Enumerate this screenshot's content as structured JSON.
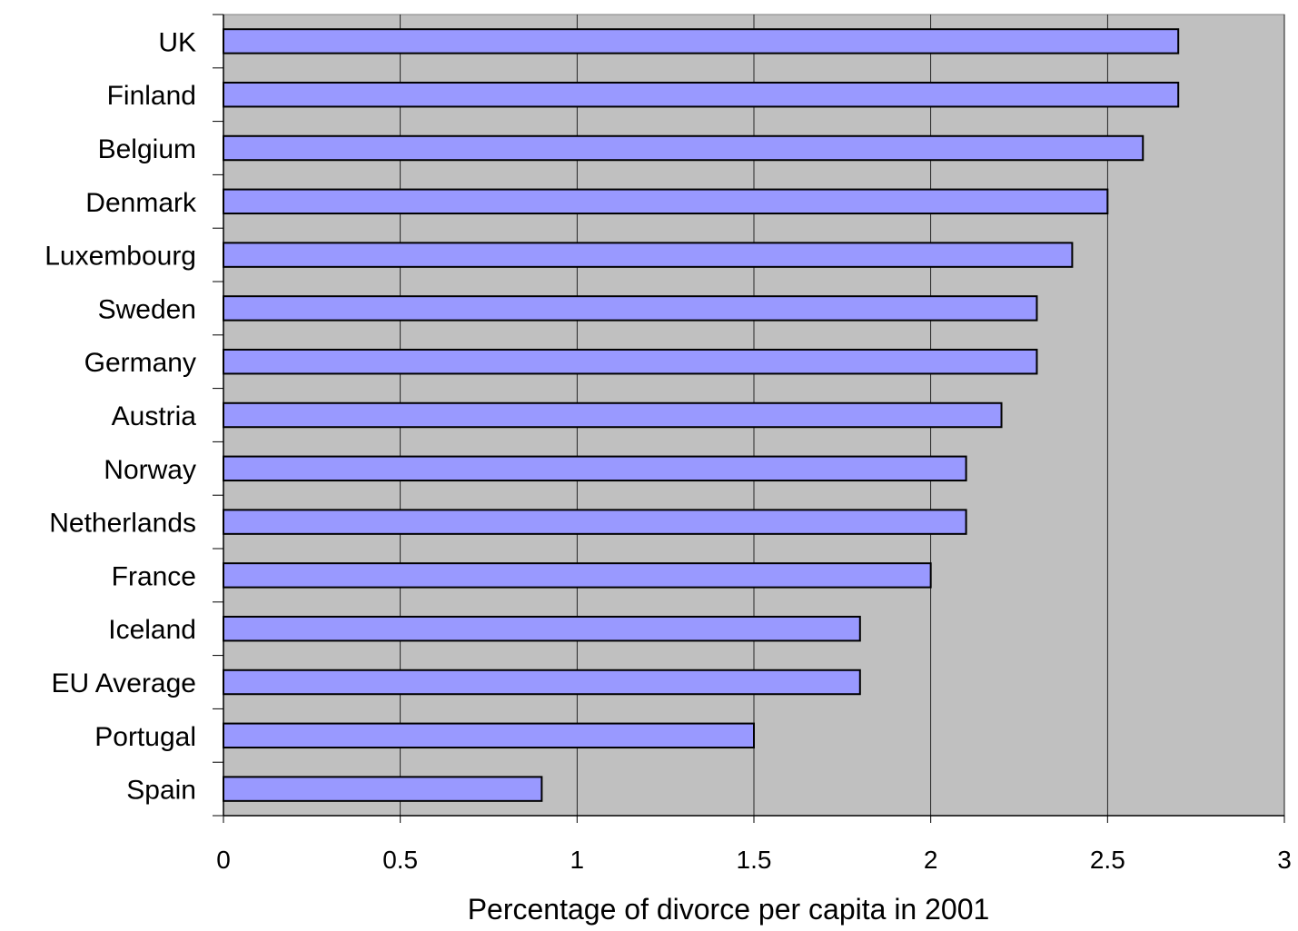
{
  "chart_data": {
    "type": "bar",
    "orientation": "horizontal",
    "title": "",
    "xlabel": "Percentage of divorce per capita in 2001",
    "ylabel": "",
    "categories": [
      "UK",
      "Finland",
      "Belgium",
      "Denmark",
      "Luxembourg",
      "Sweden",
      "Germany",
      "Austria",
      "Norway",
      "Netherlands",
      "France",
      "Iceland",
      "EU Average",
      "Portugal",
      "Spain"
    ],
    "values": [
      2.7,
      2.7,
      2.6,
      2.5,
      2.4,
      2.3,
      2.3,
      2.2,
      2.1,
      2.1,
      2.0,
      1.8,
      1.8,
      1.5,
      0.9
    ],
    "xlim": [
      0,
      3
    ],
    "xticks": [
      0,
      0.5,
      1,
      1.5,
      2,
      2.5,
      3
    ],
    "xtick_labels": [
      "0",
      "0.5",
      "1",
      "1.5",
      "2",
      "2.5",
      "3"
    ],
    "grid": "vertical",
    "legend": "none",
    "colors": {
      "bar_fill": "#9999ff",
      "bar_stroke": "#000000",
      "plot_background": "#c0c0c0",
      "gridline": "#000000"
    }
  }
}
